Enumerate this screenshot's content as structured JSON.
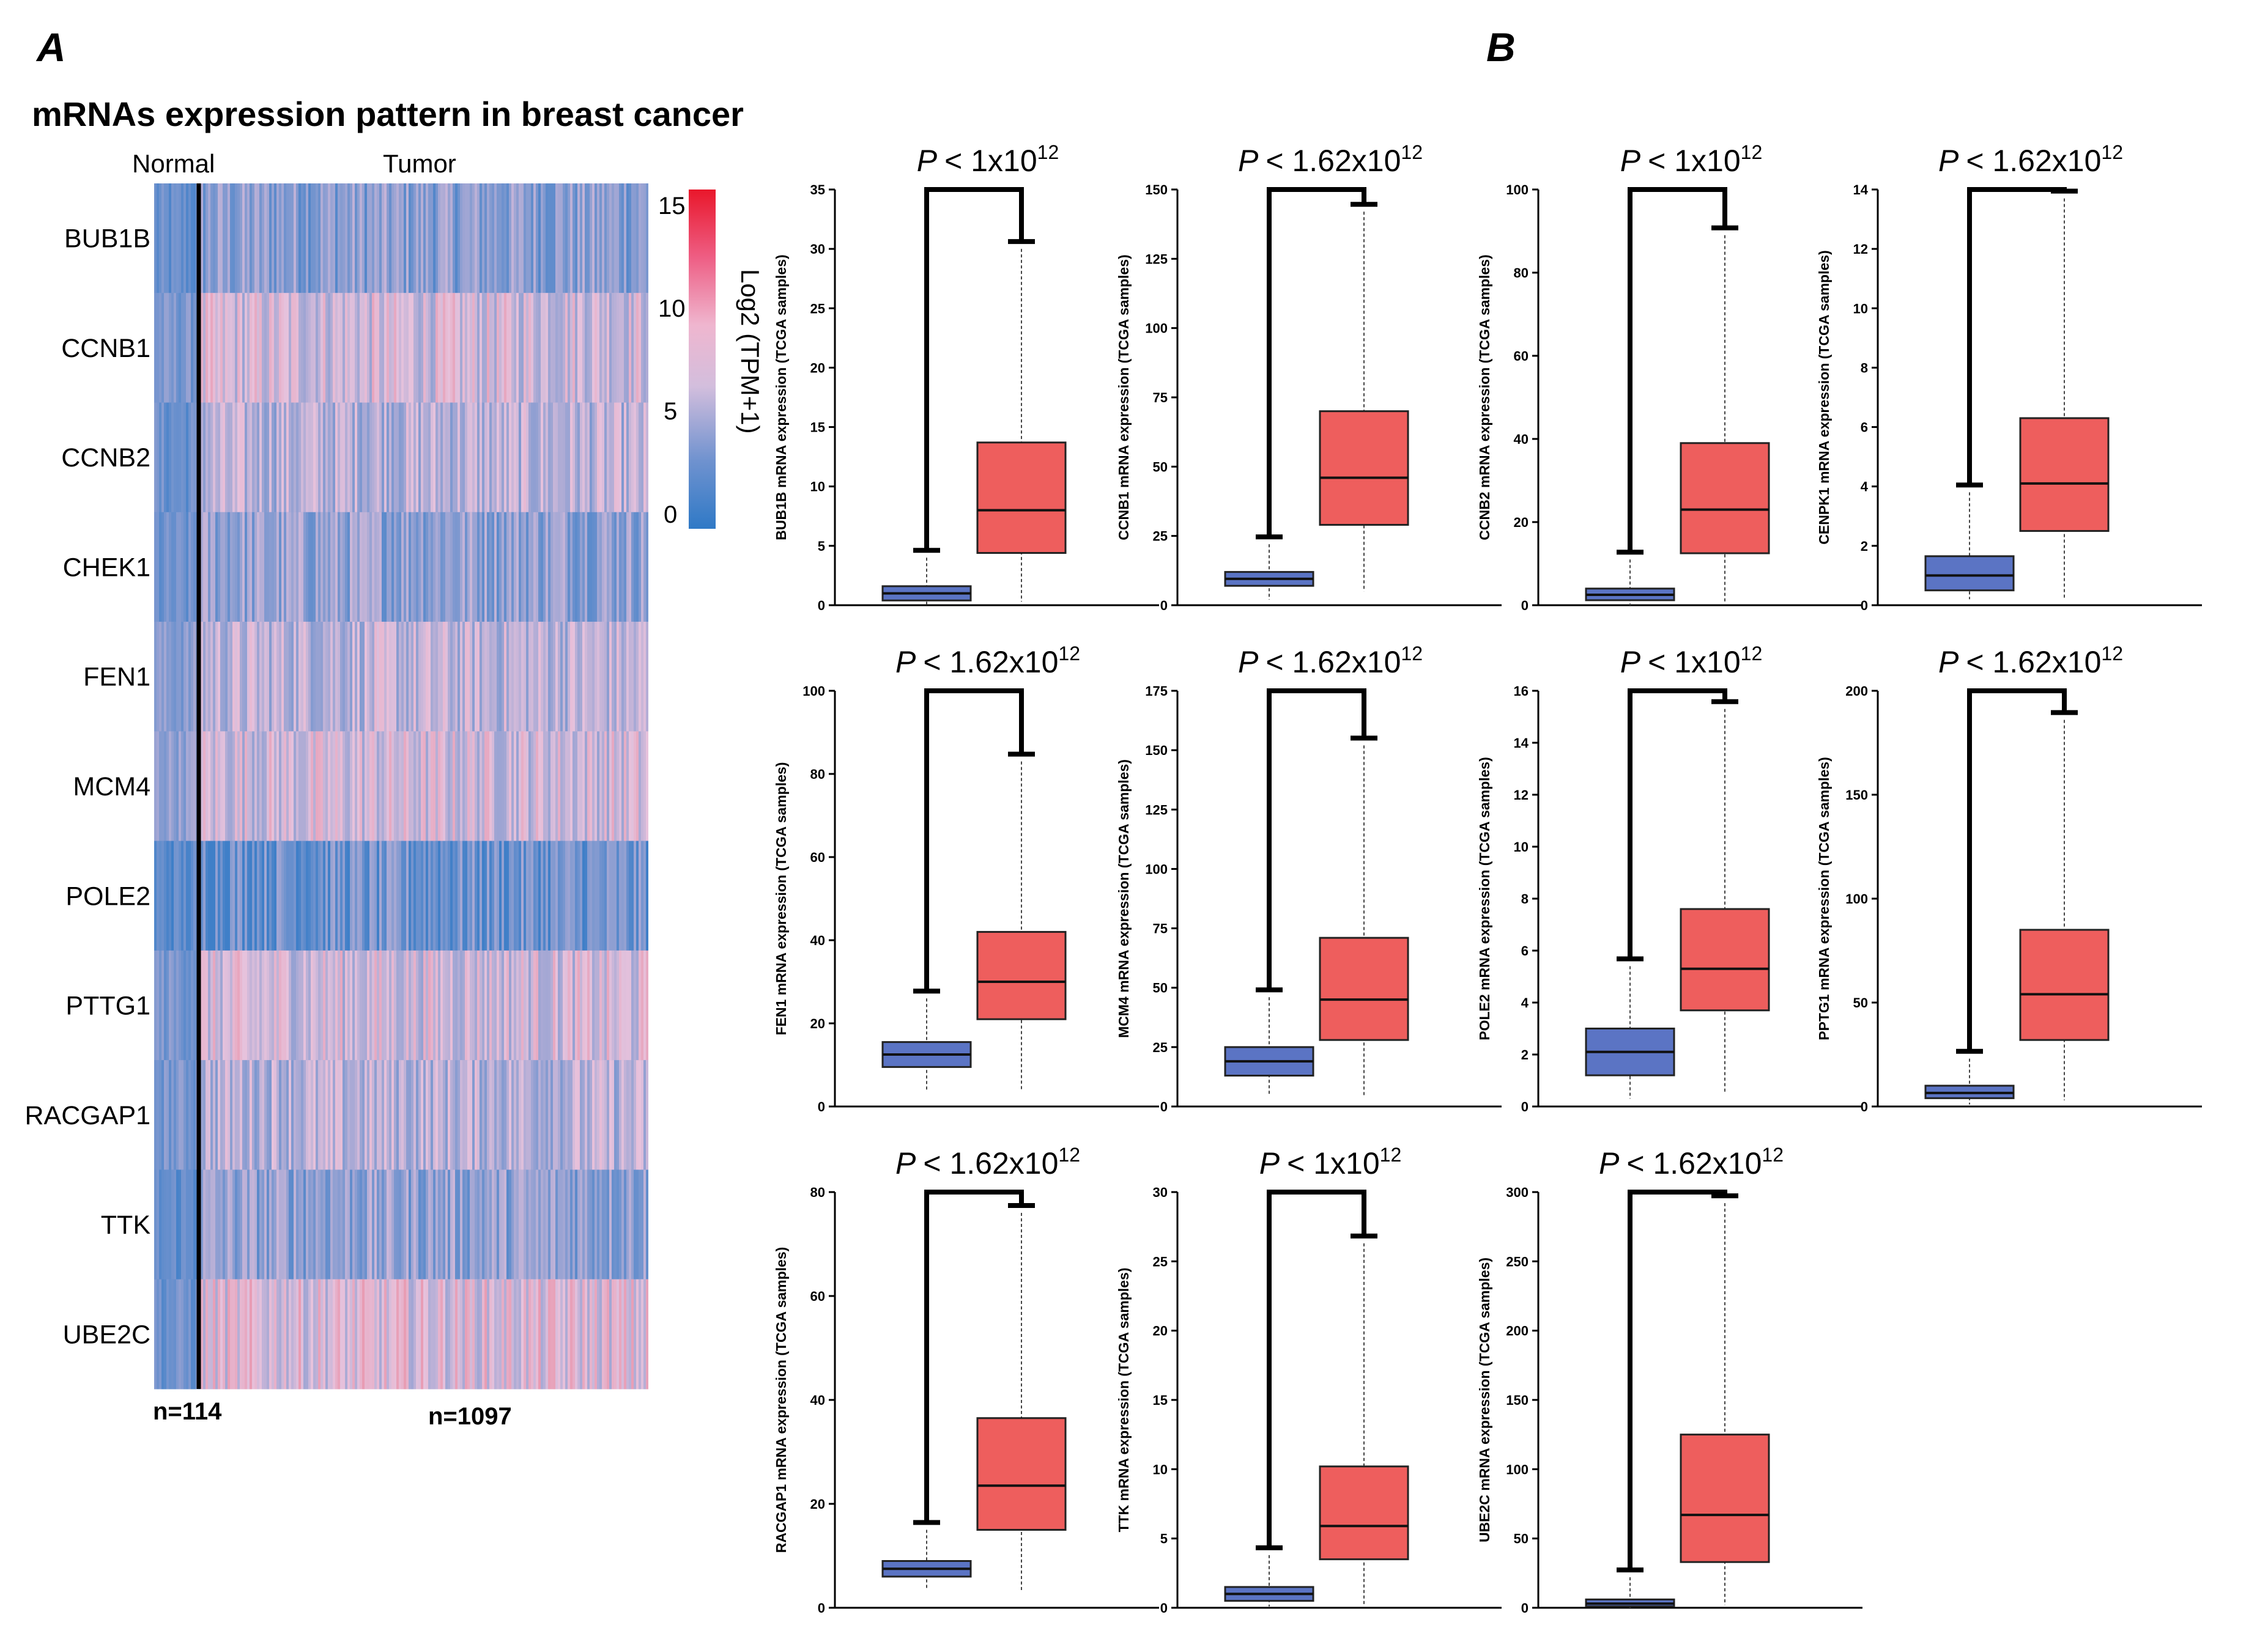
{
  "figure": {
    "panel_a_label": "A",
    "panel_b_label": "B"
  },
  "heatmap": {
    "title": "mRNAs expression pattern in breast cancer",
    "group_normal": "Normal",
    "group_tumor": "Tumor",
    "n_normal": "n=114",
    "n_tumor": "n=1097",
    "colorbar_label": "Log2 (TPM+1)",
    "colorbar_ticks": [
      "15",
      "10",
      "5",
      "0"
    ],
    "colors": {
      "low": "#3f7fc8",
      "mid": "#e7c2dc",
      "high": "#ea1f2e"
    }
  },
  "chart_data": [
    {
      "type": "heatmap",
      "title": "mRNAs expression pattern in breast cancer",
      "rows": [
        "BUB1B",
        "CCNB1",
        "CCNB2",
        "CHEK1",
        "FEN1",
        "MCM4",
        "POLE2",
        "PTTG1",
        "RACGAP1",
        "TTK",
        "UBE2C"
      ],
      "columns": [
        "Normal",
        "Tumor"
      ],
      "column_n": [
        114,
        1097
      ],
      "scale_label": "Log2 (TPM+1)",
      "scale_range": [
        0,
        15
      ],
      "approx_level_normal": [
        1.5,
        2.5,
        1.8,
        1.8,
        3,
        3.5,
        1.2,
        2.5,
        2.5,
        1.5,
        2
      ],
      "approx_level_tumor": [
        3.2,
        6,
        5,
        3.6,
        5.2,
        6,
        2,
        6,
        5,
        3.5,
        6.5
      ]
    },
    {
      "type": "box",
      "gene": "BUB1B",
      "ylabel": "BUB1B mRNA expression (TCGA samples)",
      "p_text": "< 1x10",
      "p_exp": "12",
      "ylim": [
        0,
        35
      ],
      "yticks": [
        "0",
        "5",
        "10",
        "15",
        "20",
        "25",
        "30",
        "35"
      ],
      "series": [
        {
          "name": "Normal",
          "whisker_low": 0,
          "q1": 0.4,
          "median": 1,
          "q3": 1.6,
          "whisker_high": 4
        },
        {
          "name": "Tumor",
          "whisker_low": 0.3,
          "q1": 4.4,
          "median": 8,
          "q3": 13.7,
          "whisker_high": 30
        }
      ]
    },
    {
      "type": "box",
      "gene": "CCNB1",
      "ylabel": "CCNB1 mRNA expression (TCGA samples)",
      "p_text": "< 1.62x10",
      "p_exp": "12",
      "ylim": [
        0,
        150
      ],
      "yticks": [
        "0",
        "25",
        "50",
        "75",
        "100",
        "125",
        "150"
      ],
      "series": [
        {
          "name": "Normal",
          "whisker_low": 2,
          "q1": 7,
          "median": 9.5,
          "q3": 12,
          "whisker_high": 22
        },
        {
          "name": "Tumor",
          "whisker_low": 5,
          "q1": 29,
          "median": 46,
          "q3": 70,
          "whisker_high": 142
        }
      ]
    },
    {
      "type": "box",
      "gene": "CCNB2",
      "ylabel": "CCNB2 mRNA expression (TCGA samples)",
      "p_text": "< 1x10",
      "p_exp": "12",
      "ylim": [
        0,
        100
      ],
      "yticks": [
        "0",
        "20",
        "40",
        "60",
        "80",
        "100"
      ],
      "series": [
        {
          "name": "Normal",
          "whisker_low": 0,
          "q1": 1.2,
          "median": 2.5,
          "q3": 4,
          "whisker_high": 11
        },
        {
          "name": "Tumor",
          "whisker_low": 0.5,
          "q1": 12.5,
          "median": 23,
          "q3": 39,
          "whisker_high": 89
        }
      ]
    },
    {
      "type": "box",
      "gene": "CENPK1",
      "ylabel": "CENPK1 mRNA expression (TCGA samples)",
      "p_text": "< 1.62x10",
      "p_exp": "12",
      "ylim": [
        0,
        14
      ],
      "yticks": [
        "0",
        "2",
        "4",
        "6",
        "8",
        "10",
        "12",
        "14"
      ],
      "series": [
        {
          "name": "Normal",
          "whisker_low": 0.2,
          "q1": 0.5,
          "median": 1,
          "q3": 1.65,
          "whisker_high": 3.8
        },
        {
          "name": "Tumor",
          "whisker_low": 0.2,
          "q1": 2.5,
          "median": 4.1,
          "q3": 6.3,
          "whisker_high": 13.7
        }
      ]
    },
    {
      "type": "box",
      "gene": "FEN1",
      "ylabel": "FEN1 mRNA expression (TCGA samples)",
      "p_text": "< 1.62x10",
      "p_exp": "12",
      "ylim": [
        0,
        100
      ],
      "yticks": [
        "0",
        "20",
        "40",
        "60",
        "80",
        "100"
      ],
      "series": [
        {
          "name": "Normal",
          "whisker_low": 4,
          "q1": 9.5,
          "median": 12.5,
          "q3": 15.5,
          "whisker_high": 26
        },
        {
          "name": "Tumor",
          "whisker_low": 4,
          "q1": 21,
          "median": 30,
          "q3": 42,
          "whisker_high": 83
        }
      ]
    },
    {
      "type": "box",
      "gene": "MCM4",
      "ylabel": "MCM4 mRNA expression (TCGA samples)",
      "p_text": "< 1.62x10",
      "p_exp": "12",
      "ylim": [
        0,
        175
      ],
      "yticks": [
        "0",
        "25",
        "50",
        "75",
        "100",
        "125",
        "150",
        "175"
      ],
      "series": [
        {
          "name": "Normal",
          "whisker_low": 5,
          "q1": 13,
          "median": 19,
          "q3": 25,
          "whisker_high": 46
        },
        {
          "name": "Tumor",
          "whisker_low": 4,
          "q1": 28,
          "median": 45,
          "q3": 71,
          "whisker_high": 152
        }
      ]
    },
    {
      "type": "box",
      "gene": "POLE2",
      "ylabel": "POLE2 mRNA expression (TCGA samples)",
      "p_text": "< 1x10",
      "p_exp": "12",
      "ylim": [
        0,
        16
      ],
      "yticks": [
        "0",
        "2",
        "4",
        "6",
        "8",
        "10",
        "12",
        "14",
        "16"
      ],
      "series": [
        {
          "name": "Normal",
          "whisker_low": 0.3,
          "q1": 1.2,
          "median": 2.1,
          "q3": 3,
          "whisker_high": 5.4
        },
        {
          "name": "Tumor",
          "whisker_low": 0.5,
          "q1": 3.7,
          "median": 5.3,
          "q3": 7.6,
          "whisker_high": 15.3
        }
      ]
    },
    {
      "type": "box",
      "gene": "PPTG1",
      "ylabel": "PPTG1 mRNA expression (TCGA samples)",
      "p_text": "< 1.62x10",
      "p_exp": "12",
      "ylim": [
        0,
        200
      ],
      "yticks": [
        "0",
        "50",
        "100",
        "150",
        "200"
      ],
      "series": [
        {
          "name": "Normal",
          "whisker_low": 1,
          "q1": 4,
          "median": 6.5,
          "q3": 10,
          "whisker_high": 23
        },
        {
          "name": "Tumor",
          "whisker_low": 3,
          "q1": 32,
          "median": 54,
          "q3": 85,
          "whisker_high": 186
        }
      ]
    },
    {
      "type": "box",
      "gene": "RACGAP1",
      "ylabel": "RACGAP1 mRNA expression (TCGA samples)",
      "p_text": "< 1.62x10",
      "p_exp": "12",
      "ylim": [
        0,
        80
      ],
      "yticks": [
        "0",
        "20",
        "40",
        "60",
        "80"
      ],
      "series": [
        {
          "name": "Normal",
          "whisker_low": 3.5,
          "q1": 6,
          "median": 7.5,
          "q3": 9,
          "whisker_high": 15
        },
        {
          "name": "Tumor",
          "whisker_low": 3,
          "q1": 15,
          "median": 23.5,
          "q3": 36.5,
          "whisker_high": 76
        }
      ]
    },
    {
      "type": "box",
      "gene": "TTK",
      "ylabel": "TTK mRNA expression (TCGA samples)",
      "p_text": "< 1x10",
      "p_exp": "12",
      "ylim": [
        0,
        30
      ],
      "yticks": [
        "0",
        "5",
        "10",
        "15",
        "20",
        "25",
        "30"
      ],
      "series": [
        {
          "name": "Normal",
          "whisker_low": 0.1,
          "q1": 0.5,
          "median": 1,
          "q3": 1.5,
          "whisker_high": 3.8
        },
        {
          "name": "Tumor",
          "whisker_low": 0.2,
          "q1": 3.5,
          "median": 5.9,
          "q3": 10.2,
          "whisker_high": 26.3
        }
      ]
    },
    {
      "type": "box",
      "gene": "UBE2C",
      "ylabel": "UBE2C mRNA expression (TCGA samples)",
      "p_text": "< 1.62x10",
      "p_exp": "12",
      "ylim": [
        0,
        300
      ],
      "yticks": [
        "0",
        "50",
        "100",
        "150",
        "200",
        "250",
        "300"
      ],
      "series": [
        {
          "name": "Normal",
          "whisker_low": 0,
          "q1": 1,
          "median": 3,
          "q3": 6,
          "whisker_high": 22
        },
        {
          "name": "Tumor",
          "whisker_low": 2,
          "q1": 33,
          "median": 67,
          "q3": 125,
          "whisker_high": 292
        }
      ]
    }
  ],
  "box_style": {
    "normal_fill": "#5b74c4",
    "tumor_fill": "#ee5e5d",
    "p_symbol": "P"
  }
}
